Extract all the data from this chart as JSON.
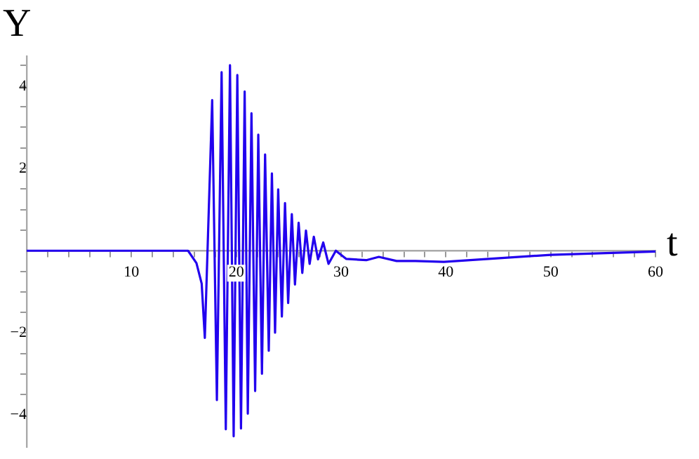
{
  "chart_data": {
    "type": "line",
    "xlabel": "t",
    "ylabel": "Y",
    "xlim": [
      0,
      60
    ],
    "ylim": [
      -4.77,
      4.73
    ],
    "xticks": [
      {
        "value": 2,
        "label": null
      },
      {
        "value": 4,
        "label": null
      },
      {
        "value": 6,
        "label": null
      },
      {
        "value": 8,
        "label": null
      },
      10,
      {
        "value": 12,
        "label": null
      },
      {
        "value": 14,
        "label": null
      },
      {
        "value": 16,
        "label": null
      },
      {
        "value": 18,
        "label": null
      },
      20,
      {
        "value": 22,
        "label": null
      },
      {
        "value": 24,
        "label": null
      },
      {
        "value": 26,
        "label": null
      },
      {
        "value": 28,
        "label": null
      },
      30,
      {
        "value": 32,
        "label": null
      },
      {
        "value": 34,
        "label": null
      },
      {
        "value": 36,
        "label": null
      },
      {
        "value": 38,
        "label": null
      },
      40,
      {
        "value": 42,
        "label": null
      },
      {
        "value": 44,
        "label": null
      },
      {
        "value": 46,
        "label": null
      },
      {
        "value": 48,
        "label": null
      },
      50,
      {
        "value": 52,
        "label": null
      },
      {
        "value": 54,
        "label": null
      },
      {
        "value": 56,
        "label": null
      },
      {
        "value": 58,
        "label": null
      },
      60
    ],
    "yticks": [
      -4,
      {
        "value": -3.5,
        "label": null
      },
      {
        "value": -3,
        "label": null
      },
      {
        "value": -2.5,
        "label": null
      },
      -2,
      {
        "value": -1.5,
        "label": null
      },
      {
        "value": -1,
        "label": null
      },
      {
        "value": -0.5,
        "label": null
      },
      {
        "value": 0.5,
        "label": null
      },
      {
        "value": 1,
        "label": null
      },
      {
        "value": 1.5,
        "label": null
      },
      2,
      {
        "value": 2.5,
        "label": null
      },
      {
        "value": 3,
        "label": null
      },
      {
        "value": 3.5,
        "label": null
      },
      4,
      {
        "value": 4.5,
        "label": null
      }
    ],
    "grid": false,
    "legend": false,
    "marker": "none",
    "line_style": "solid",
    "series": [
      {
        "color": "#2200ee",
        "x": [
          0,
          15.4,
          16.2,
          16.7,
          17.0,
          17.7,
          18.15,
          18.6,
          19.0,
          19.4,
          19.75,
          20.1,
          20.45,
          20.8,
          21.1,
          21.45,
          21.8,
          22.1,
          22.45,
          22.75,
          23.1,
          23.4,
          23.7,
          24.0,
          24.35,
          24.65,
          24.95,
          25.3,
          25.6,
          25.95,
          26.3,
          26.65,
          27.0,
          27.4,
          27.8,
          28.3,
          28.8,
          29.5,
          30.5,
          32.4,
          33.6,
          35.3,
          37.1,
          39.8,
          50,
          60
        ],
        "values": [
          0,
          0,
          -0.3,
          -0.8,
          -2.12,
          3.66,
          -3.63,
          4.34,
          -4.34,
          4.51,
          -4.51,
          4.27,
          -4.32,
          3.87,
          -3.96,
          3.34,
          -3.41,
          2.82,
          -2.99,
          2.34,
          -2.43,
          1.88,
          -1.99,
          1.49,
          -1.6,
          1.16,
          -1.27,
          0.89,
          -0.82,
          0.68,
          -0.54,
          0.49,
          -0.32,
          0.34,
          -0.21,
          0.2,
          -0.32,
          0,
          -0.2,
          -0.23,
          -0.15,
          -0.25,
          -0.25,
          -0.27,
          -0.1,
          -0.02
        ]
      }
    ]
  }
}
